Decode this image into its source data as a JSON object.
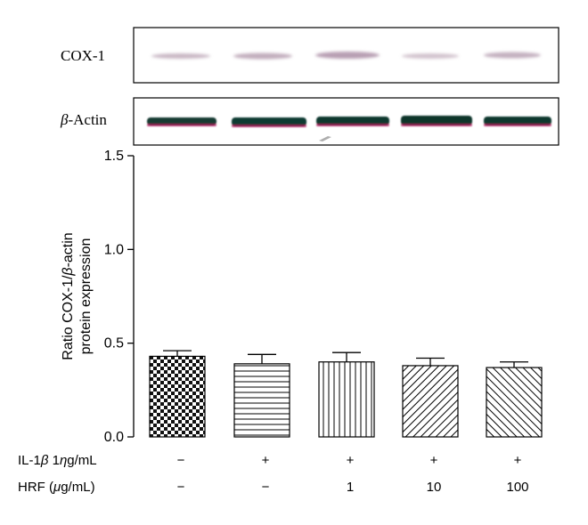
{
  "blot": {
    "cox1_label": "COX-1",
    "actin_label_greek": "β",
    "actin_label_rest": "-Actin"
  },
  "chart_data": {
    "type": "bar",
    "title": "",
    "ylabel_line1_pre": "Ratio COX-1/",
    "ylabel_line1_greek": "β",
    "ylabel_line1_post": "-actin",
    "ylabel_line2": "protein expression",
    "ylim": [
      0,
      1.5
    ],
    "yticks": [
      "0.0",
      "0.5",
      "1.0",
      "1.5"
    ],
    "values": [
      0.43,
      0.39,
      0.4,
      0.38,
      0.37
    ],
    "errors": [
      0.03,
      0.05,
      0.05,
      0.04,
      0.03
    ],
    "patterns": [
      "checker",
      "horizontal",
      "vertical",
      "diag-right",
      "diag-left"
    ],
    "conditions": {
      "il1b_label_pre": "IL-1",
      "il1b_label_greek": "β",
      "il1b_label_mid": " 1",
      "il1b_label_greek2": "η",
      "il1b_label_post": "g/mL",
      "il1b_values": [
        "−",
        "+",
        "+",
        "+",
        "+"
      ],
      "hrf_label_pre": "HRF (",
      "hrf_label_greek": "μ",
      "hrf_label_post": "g/mL)",
      "hrf_values": [
        "−",
        "−",
        "1",
        "10",
        "100"
      ]
    }
  }
}
